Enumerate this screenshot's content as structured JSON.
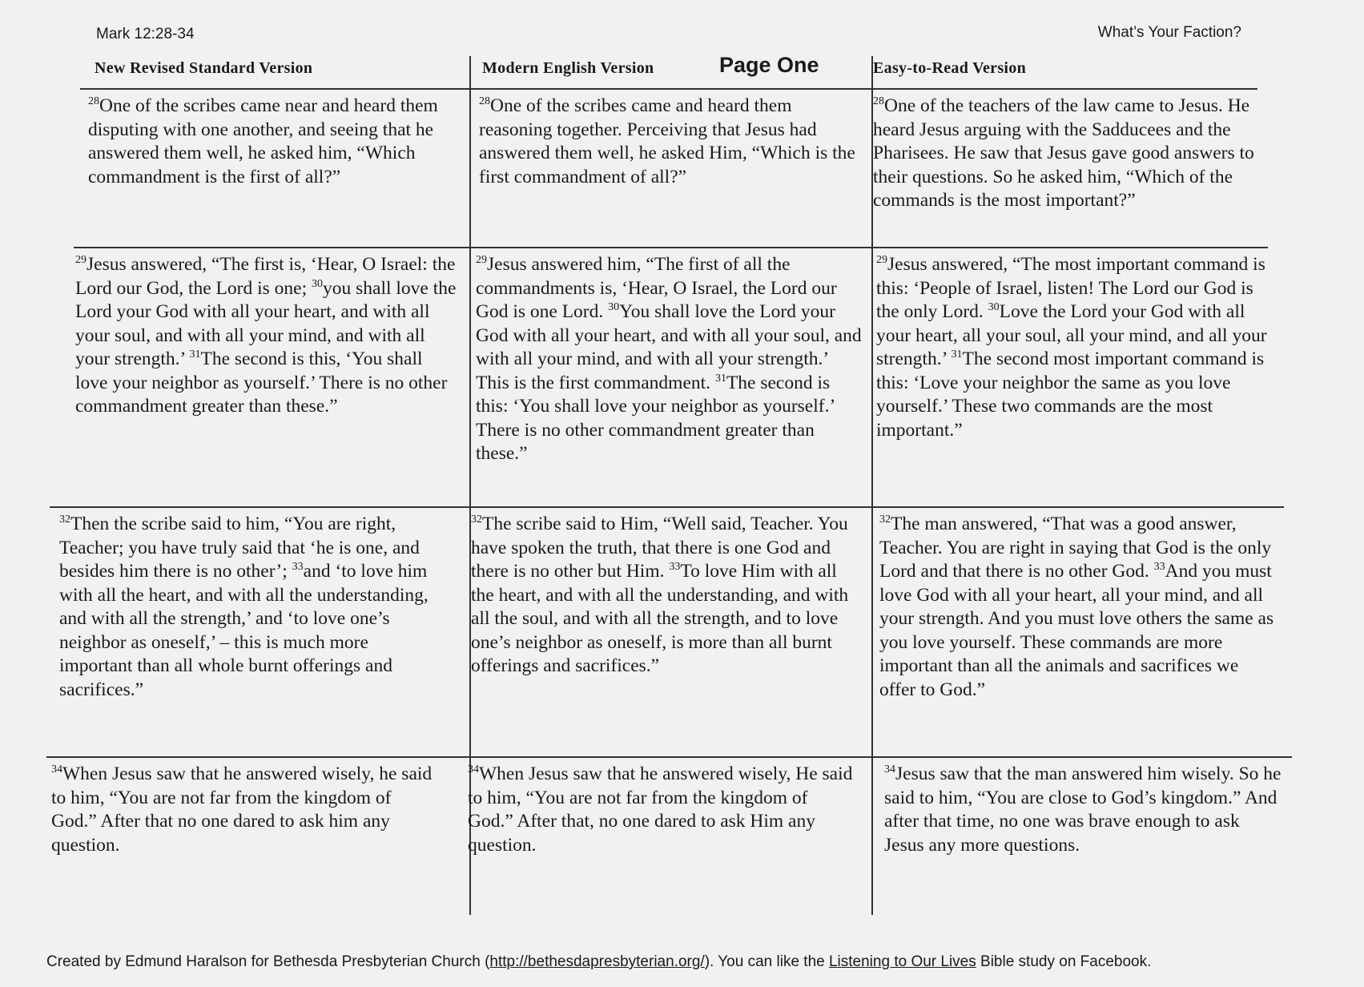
{
  "header": {
    "reference": "Mark 12:28-34",
    "title": "What’s Your Faction?",
    "page_label": "Page One"
  },
  "columns": [
    "New Revised Standard Version",
    "Modern English Version",
    "Easy-to-Read Version"
  ],
  "rows": [
    [
      [
        {
          "v": "28",
          "t": "One of the scribes came near and heard them disputing with one another, and seeing that he answered them well, he asked him, “Which commandment is the first of all?”"
        }
      ],
      [
        {
          "v": "28",
          "t": "One of the scribes came and heard them reasoning together.  Perceiving that Jesus had answered them well, he asked Him, “Which is the first commandment of all?”"
        }
      ],
      [
        {
          "v": "28",
          "t": "One of the teachers of the law came to Jesus.  He heard Jesus arguing with the Sadducees and the Pharisees.  He saw that Jesus gave good answers to their questions.  So he asked him, “Which of the commands is the most important?”"
        }
      ]
    ],
    [
      [
        {
          "v": "29",
          "t": "Jesus answered, “The first is, ‘Hear, O Israel: the Lord our God, the Lord is one; "
        },
        {
          "v": "30",
          "t": "you shall love the Lord your God with all your heart, and with all your soul, and with all your mind, and with all your strength.’ "
        },
        {
          "v": "31",
          "t": "The second is this, ‘You shall love your neighbor as yourself.’  There is no other commandment greater than these.”"
        }
      ],
      [
        {
          "v": "29",
          "t": "Jesus answered him, “The first of all the commandments is, ‘Hear, O Israel, the Lord our God is one Lord.  "
        },
        {
          "v": "30",
          "t": "You shall love the Lord your God with all your heart, and with all your soul, and with all your mind, and with all your strength.’  This is the first commandment.  "
        },
        {
          "v": "31",
          "t": "The second is this: ‘You shall love your neighbor as yourself.’  There is no other commandment greater than these.”"
        }
      ],
      [
        {
          "v": "29",
          "t": "Jesus answered, “The most important command is this: ‘People of Israel, listen! The Lord our God is the only Lord.  "
        },
        {
          "v": "30",
          "t": "Love the Lord your God with all your heart, all your soul, all your mind, and all your strength.’  "
        },
        {
          "v": "31",
          "t": "The second most important command is this: ‘Love your neighbor the same as you love yourself.’  These two commands are the most important.”"
        }
      ]
    ],
    [
      [
        {
          "v": "32",
          "t": "Then the scribe said to him, “You are right, Teacher; you have truly said that ‘he is one, and besides him there is no other’; "
        },
        {
          "v": "33",
          "t": "and ‘to love him with all the heart, and with all the understanding, and with all the strength,’ and ‘to love one’s neighbor as oneself,’ – this is much more important than all whole burnt offerings and sacrifices.”"
        }
      ],
      [
        {
          "v": "32",
          "t": "The scribe said to Him, “Well said, Teacher.  You have spoken the truth, that there is one God and there is no other but Him.  "
        },
        {
          "v": "33",
          "t": "To love Him with all the heart, and with all the understanding, and with all the soul, and with all the strength, and to love one’s neighbor as oneself, is more than all burnt offerings and sacrifices.”"
        }
      ],
      [
        {
          "v": "32",
          "t": "The man answered, “That was a good answer, Teacher.  You are right in saying that God is the only Lord and that there is no other God.  "
        },
        {
          "v": "33",
          "t": "And you must love God with all your heart, all your mind, and all your strength.  And you must love others the same as you love yourself.  These commands are more important than all the animals and sacrifices we offer to God.”"
        }
      ]
    ],
    [
      [
        {
          "v": "34",
          "t": "When Jesus saw that he answered wisely, he said to him, “You are not far from the kingdom of God.”  After that no one dared to ask him any question."
        }
      ],
      [
        {
          "v": "34",
          "t": "When Jesus saw that he answered wisely, He said to him, “You are not far from the kingdom of God.”  After that, no one dared to ask Him any question."
        }
      ],
      [
        {
          "v": "34",
          "t": "Jesus saw that the man answered him wisely. So he said to him, “You are close to God’s kingdom.”  And after that time, no one was brave enough to ask Jesus any more questions."
        }
      ]
    ]
  ],
  "footer": {
    "prefix": "Created by Edmund Haralson for Bethesda Presbyterian Church (",
    "url": "http://bethesdapresbyterian.org/",
    "middle": ").  You can like the ",
    "study_name": "Listening to Our Lives",
    "suffix": " Bible study on Facebook."
  }
}
